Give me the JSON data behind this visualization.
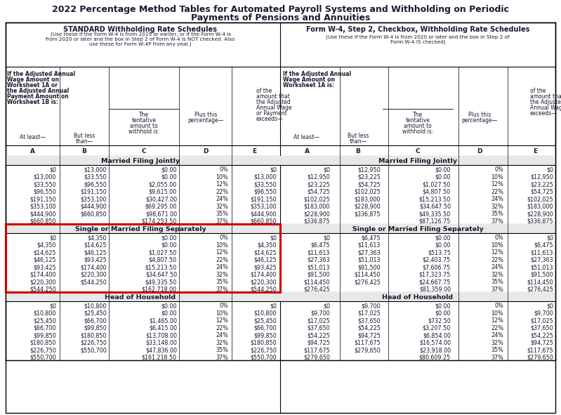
{
  "title_line1": "2022 Percentage Method Tables for Automated Payroll Systems and Withholding on Periodic",
  "title_line2": "Payments of Pensions and Annuities",
  "left_header_bold": "STANDARD Withholding Rate Schedules",
  "left_header_sub": "(Use these if the Form W-4 is from 2019 or earlier, or if the Form W-4 is\nfrom 2020 or later and the box in Step 2 of Form W-4 is NOT checked. Also\nuse these for Form W-4P from any year.)",
  "right_header_bold": "Form W-4, Step 2, Checkbox, Withholding Rate Schedules",
  "right_header_sub": "(Use these if the Form W-4 is from 2020 or later and the box in Step 2 of\nForm W-4 IS checked)",
  "section_headers": [
    "Married Filing Jointly",
    "Single or Married Filing Separately",
    "Head of Household"
  ],
  "married_left": [
    [
      "$0",
      "$13,000",
      "$0.00",
      "0%",
      "$0"
    ],
    [
      "$13,000",
      "$33,550",
      "$0.00",
      "10%",
      "$13,000"
    ],
    [
      "$33,550",
      "$96,550",
      "$2,055.00",
      "12%",
      "$33,550"
    ],
    [
      "$96,550",
      "$191,150",
      "$9,615.00",
      "22%",
      "$96,550"
    ],
    [
      "$191,150",
      "$353,100",
      "$30,427.00",
      "24%",
      "$191,150"
    ],
    [
      "$353,100",
      "$444,900",
      "$69,295.00",
      "32%",
      "$353,100"
    ],
    [
      "$444,900",
      "$660,850",
      "$98,671.00",
      "35%",
      "$444,900"
    ],
    [
      "$660,850",
      "",
      "$174,253.50",
      "37%",
      "$660,850"
    ]
  ],
  "married_right": [
    [
      "$0",
      "$12,950",
      "$0.00",
      "0%",
      "$0"
    ],
    [
      "$12,950",
      "$23,225",
      "$0.00",
      "10%",
      "$12,950"
    ],
    [
      "$23,225",
      "$54,725",
      "$1,027.50",
      "12%",
      "$23,225"
    ],
    [
      "$54,725",
      "$102,025",
      "$4,807.50",
      "22%",
      "$54,725"
    ],
    [
      "$102,025",
      "$183,000",
      "$15,213.50",
      "24%",
      "$102,025"
    ],
    [
      "$183,000",
      "$228,900",
      "$34,647.50",
      "32%",
      "$183,000"
    ],
    [
      "$228,900",
      "$336,875",
      "$49,335.50",
      "35%",
      "$228,900"
    ],
    [
      "$336,875",
      "",
      "$87,126.75",
      "37%",
      "$336,875"
    ]
  ],
  "single_left": [
    [
      "$0",
      "$4,350",
      "$0.00",
      "0%",
      "$0"
    ],
    [
      "$4,350",
      "$14,625",
      "$0.00",
      "10%",
      "$4,350"
    ],
    [
      "$14,625",
      "$46,125",
      "$1,027.50",
      "12%",
      "$14,625"
    ],
    [
      "$46,125",
      "$93,425",
      "$4,807.50",
      "22%",
      "$46,125"
    ],
    [
      "$93,425",
      "$174,400",
      "$15,213.50",
      "24%",
      "$93,425"
    ],
    [
      "$174,400",
      "$220,300",
      "$34,647.50",
      "32%",
      "$174,400"
    ],
    [
      "$220,300",
      "$544,250",
      "$49,335.50",
      "35%",
      "$220,300"
    ],
    [
      "$544,250",
      "",
      "$162,718.00",
      "37%",
      "$544,250"
    ]
  ],
  "single_right": [
    [
      "$0",
      "$6,475",
      "$0.00",
      "0%",
      "$0"
    ],
    [
      "$6,475",
      "$11,613",
      "$0.00",
      "10%",
      "$6,475"
    ],
    [
      "$11,613",
      "$27,363",
      "$513.75",
      "12%",
      "$11,613"
    ],
    [
      "$27,363",
      "$51,013",
      "$2,403.75",
      "22%",
      "$27,363"
    ],
    [
      "$51,013",
      "$91,500",
      "$7,606.75",
      "24%",
      "$51,013"
    ],
    [
      "$91,500",
      "$114,450",
      "$17,323.75",
      "32%",
      "$91,500"
    ],
    [
      "$114,450",
      "$276,425",
      "$24,667.75",
      "35%",
      "$114,450"
    ],
    [
      "$276,425",
      "",
      "$81,359.00",
      "37%",
      "$276,425"
    ]
  ],
  "head_left": [
    [
      "$0",
      "$10,800",
      "$0.00",
      "0%",
      "$0"
    ],
    [
      "$10,800",
      "$25,450",
      "$0.00",
      "10%",
      "$10,800"
    ],
    [
      "$25,450",
      "$66,700",
      "$1,465.00",
      "12%",
      "$25,450"
    ],
    [
      "$66,700",
      "$99,850",
      "$6,415.00",
      "22%",
      "$66,700"
    ],
    [
      "$99,850",
      "$180,850",
      "$13,708.00",
      "24%",
      "$99,850"
    ],
    [
      "$180,850",
      "$226,750",
      "$33,148.00",
      "32%",
      "$180,850"
    ],
    [
      "$226,750",
      "$550,700",
      "$47,836.00",
      "35%",
      "$226,750"
    ],
    [
      "$550,700",
      "",
      "$161,218.50",
      "37%",
      "$550,700"
    ]
  ],
  "head_right": [
    [
      "$0",
      "$9,700",
      "$0.00",
      "0%",
      "$0"
    ],
    [
      "$9,700",
      "$17,025",
      "$0.00",
      "10%",
      "$9,700"
    ],
    [
      "$17,025",
      "$37,650",
      "$732.50",
      "12%",
      "$17,025"
    ],
    [
      "$37,650",
      "$54,225",
      "$3,207.50",
      "22%",
      "$37,650"
    ],
    [
      "$54,225",
      "$94,725",
      "$6,854.00",
      "24%",
      "$54,225"
    ],
    [
      "$94,725",
      "$117,675",
      "$16,574.00",
      "32%",
      "$94,725"
    ],
    [
      "$117,675",
      "$279,650",
      "$23,918.00",
      "35%",
      "$117,675"
    ],
    [
      "$279,650",
      "",
      "$80,609.25",
      "37%",
      "$279,650"
    ]
  ],
  "bg_color": "#ffffff",
  "section_header_bg": "#e8e8e8",
  "highlight_border_color": "#cc0000",
  "text_color": "#1a1a2e"
}
